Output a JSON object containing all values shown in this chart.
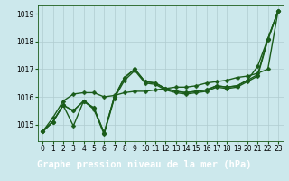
{
  "title": "Graphe pression niveau de la mer (hPa)",
  "xlim": [
    -0.5,
    23.5
  ],
  "ylim": [
    1014.4,
    1019.3
  ],
  "yticks": [
    1015,
    1016,
    1017,
    1018,
    1019
  ],
  "xticks": [
    0,
    1,
    2,
    3,
    4,
    5,
    6,
    7,
    8,
    9,
    10,
    11,
    12,
    13,
    14,
    15,
    16,
    17,
    18,
    19,
    20,
    21,
    22,
    23
  ],
  "bg_color": "#cce8ec",
  "grid_color": "#b0ccd0",
  "line_color": "#1a5c1a",
  "lines": [
    [
      1014.75,
      1015.1,
      1015.7,
      1014.95,
      1015.85,
      1015.55,
      1014.65,
      1015.95,
      1016.6,
      1016.95,
      1016.5,
      1016.45,
      1016.25,
      1016.15,
      1016.1,
      1016.15,
      1016.2,
      1016.35,
      1016.3,
      1016.35,
      1016.55,
      1016.75,
      1018.05,
      1019.1
    ],
    [
      1014.75,
      1015.1,
      1015.7,
      1015.5,
      1015.85,
      1015.6,
      1014.7,
      1016.0,
      1016.7,
      1017.0,
      1016.55,
      1016.5,
      1016.3,
      1016.2,
      1016.15,
      1016.2,
      1016.25,
      1016.4,
      1016.35,
      1016.4,
      1016.6,
      1016.8,
      1018.1,
      1019.1
    ],
    [
      1014.75,
      1015.1,
      1015.7,
      1015.5,
      1015.85,
      1015.6,
      1014.7,
      1016.0,
      1016.7,
      1017.0,
      1016.55,
      1016.5,
      1016.3,
      1016.2,
      1016.15,
      1016.2,
      1016.25,
      1016.4,
      1016.35,
      1016.4,
      1016.6,
      1017.1,
      1018.1,
      1019.1
    ],
    [
      1014.75,
      1015.25,
      1015.85,
      1016.1,
      1016.15,
      1016.15,
      1016.0,
      1016.05,
      1016.15,
      1016.2,
      1016.2,
      1016.25,
      1016.3,
      1016.35,
      1016.35,
      1016.4,
      1016.5,
      1016.55,
      1016.6,
      1016.7,
      1016.75,
      1016.85,
      1017.0,
      1019.1
    ]
  ],
  "marker": "D",
  "markersize": 2.5,
  "linewidth": 1.0,
  "title_fontsize": 7.5,
  "tick_fontsize": 5.5,
  "title_bg": "#1a5c1a",
  "title_color": "#ffffff"
}
